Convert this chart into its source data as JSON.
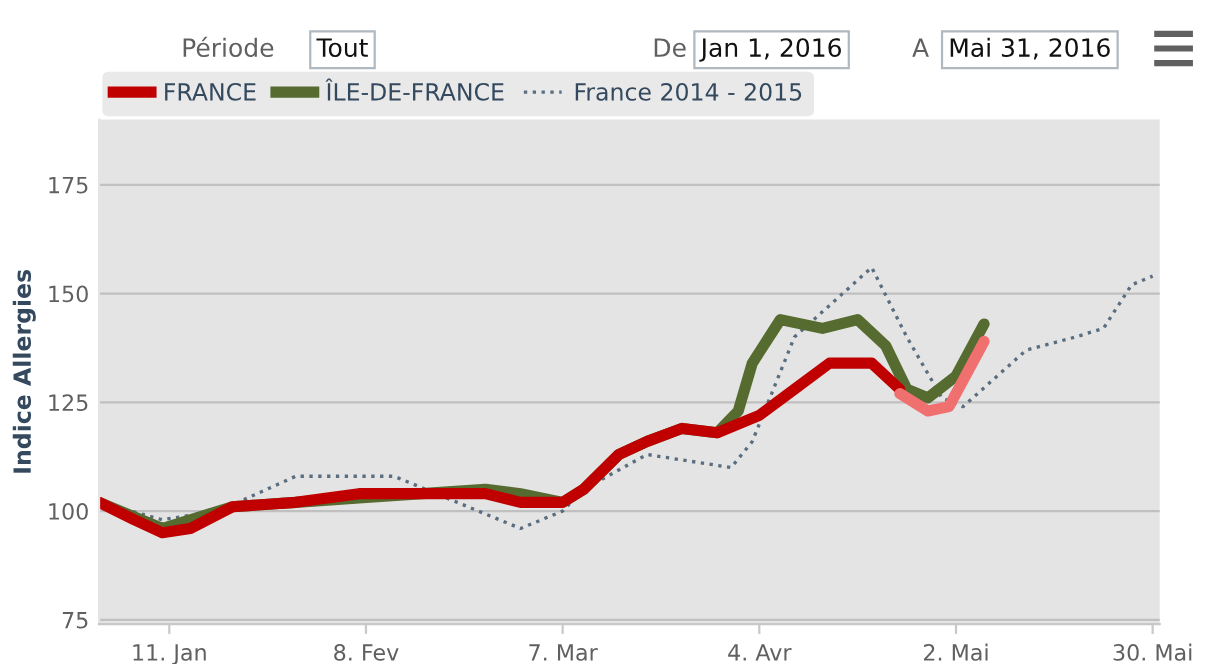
{
  "chart_data": {
    "type": "line",
    "ylabel": "Indice Allergies",
    "annotations": [
      "Période",
      "Tout",
      "De",
      "Jan 1, 2016",
      "A",
      "Mai 31, 2016"
    ],
    "xlim": [
      "2016-01-01",
      "2016-05-31"
    ],
    "xticks": [
      {
        "value": "2016-01-11",
        "label": "11. Jan"
      },
      {
        "value": "2016-02-08",
        "label": "8. Fev"
      },
      {
        "value": "2016-03-07",
        "label": "7. Mar"
      },
      {
        "value": "2016-04-04",
        "label": "4. Avr"
      },
      {
        "value": "2016-05-02",
        "label": "2. Mai"
      },
      {
        "value": "2016-05-30",
        "label": "30. Mai"
      }
    ],
    "ylim": [
      74,
      190
    ],
    "yticks": [
      75,
      100,
      125,
      150,
      175
    ],
    "grid": "y",
    "legend": "top left",
    "line_style": "solid",
    "marker": "none",
    "series": [
      {
        "name": "France 2014 - 2015",
        "color": "#5a6e80",
        "line_style": "dotted",
        "x": [
          "2016-01-01",
          "2016-01-10",
          "2016-01-18",
          "2016-01-29",
          "2016-02-12",
          "2016-02-21",
          "2016-03-01",
          "2016-03-07",
          "2016-03-10",
          "2016-03-19",
          "2016-03-31",
          "2016-04-03",
          "2016-04-09",
          "2016-04-20",
          "2016-04-25",
          "2016-04-30",
          "2016-05-03",
          "2016-05-12",
          "2016-05-19",
          "2016-05-23",
          "2016-05-27",
          "2016-05-30"
        ],
        "values": [
          102,
          98,
          100,
          108,
          108,
          102,
          96,
          100,
          105,
          113,
          110,
          116,
          140,
          156,
          140,
          126,
          124,
          137,
          140,
          142,
          152,
          154
        ]
      },
      {
        "name": "ÎLE-DE-FRANCE",
        "color": "#556b2f",
        "x": [
          "2016-01-01",
          "2016-01-10",
          "2016-01-20",
          "2016-01-29",
          "2016-02-07",
          "2016-02-16",
          "2016-02-25",
          "2016-03-01",
          "2016-03-07",
          "2016-03-10",
          "2016-03-15",
          "2016-03-19",
          "2016-03-24",
          "2016-03-29",
          "2016-04-01",
          "2016-04-03",
          "2016-04-07",
          "2016-04-13",
          "2016-04-18",
          "2016-04-22",
          "2016-04-25",
          "2016-04-28",
          "2016-05-02",
          "2016-05-06"
        ],
        "values": [
          102,
          96,
          101,
          102,
          103,
          104,
          105,
          104,
          102,
          105,
          113,
          116,
          119,
          118,
          123,
          134,
          144,
          142,
          144,
          138,
          128,
          126,
          131,
          143
        ]
      },
      {
        "name": "FRANCE",
        "color": "#c00000",
        "x": [
          "2016-01-01",
          "2016-01-06",
          "2016-01-10",
          "2016-01-14",
          "2016-01-20",
          "2016-01-29",
          "2016-02-07",
          "2016-02-16",
          "2016-02-25",
          "2016-03-01",
          "2016-03-07",
          "2016-03-10",
          "2016-03-15",
          "2016-03-19",
          "2016-03-24",
          "2016-03-29",
          "2016-04-04",
          "2016-04-09",
          "2016-04-14",
          "2016-04-20",
          "2016-04-24"
        ],
        "values": [
          102,
          98,
          95,
          96,
          101,
          102,
          104,
          104,
          104,
          102,
          102,
          105,
          113,
          116,
          119,
          118,
          122,
          128,
          134,
          134,
          128
        ]
      },
      {
        "color": "#f07070",
        "x": [
          "2016-04-24",
          "2016-04-28",
          "2016-05-01",
          "2016-05-06"
        ],
        "values": [
          127,
          123,
          124,
          139
        ]
      }
    ]
  }
}
